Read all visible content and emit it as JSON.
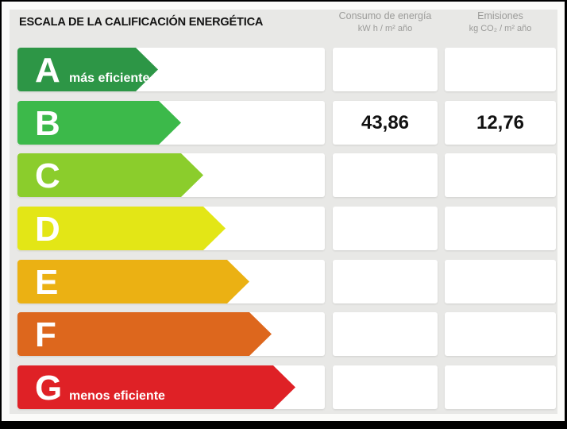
{
  "page": {
    "background_color": "#e8e8e6",
    "frame_color": "#000000"
  },
  "header": {
    "title": "ESCALA DE LA CALIFICACIÓN ENERGÉTICA",
    "consumption_header": {
      "label": "Consumo de energía",
      "units": "kW h / m² año"
    },
    "emissions_header": {
      "label": "Emisiones",
      "units": "kg CO₂ / m² año"
    }
  },
  "scale": {
    "rows": [
      {
        "letter": "A",
        "note": "más eficiente",
        "color": "#2d9646",
        "arrow_width": 177,
        "consumption": "",
        "emissions": ""
      },
      {
        "letter": "B",
        "note": "",
        "color": "#3cb94a",
        "arrow_width": 206,
        "consumption": "43,86",
        "emissions": "12,76"
      },
      {
        "letter": "C",
        "note": "",
        "color": "#8bcd2c",
        "arrow_width": 234,
        "consumption": "",
        "emissions": ""
      },
      {
        "letter": "D",
        "note": "",
        "color": "#e3e616",
        "arrow_width": 262,
        "consumption": "",
        "emissions": ""
      },
      {
        "letter": "E",
        "note": "",
        "color": "#ebb113",
        "arrow_width": 292,
        "consumption": "",
        "emissions": ""
      },
      {
        "letter": "F",
        "note": "",
        "color": "#dd671d",
        "arrow_width": 320,
        "consumption": "",
        "emissions": ""
      },
      {
        "letter": "G",
        "note": "menos eficiente",
        "color": "#df2126",
        "arrow_width": 350,
        "consumption": "",
        "emissions": ""
      }
    ]
  },
  "chart_data": {
    "type": "bar",
    "title": "ESCALA DE LA CALIFICACIÓN ENERGÉTICA",
    "categories": [
      "A",
      "B",
      "C",
      "D",
      "E",
      "F",
      "G"
    ],
    "category_notes": {
      "A": "más eficiente",
      "G": "menos eficiente"
    },
    "bar_colors": [
      "#2d9646",
      "#3cb94a",
      "#8bcd2c",
      "#e3e616",
      "#ebb113",
      "#dd671d",
      "#df2126"
    ],
    "highlighted_rating": "B",
    "series": [
      {
        "name": "Consumo de energía (kW h / m² año)",
        "values": [
          null,
          43.86,
          null,
          null,
          null,
          null,
          null
        ]
      },
      {
        "name": "Emisiones (kg CO₂ / m² año)",
        "values": [
          null,
          12.76,
          null,
          null,
          null,
          null,
          null
        ]
      }
    ],
    "legend": "none",
    "orientation": "horizontal"
  }
}
